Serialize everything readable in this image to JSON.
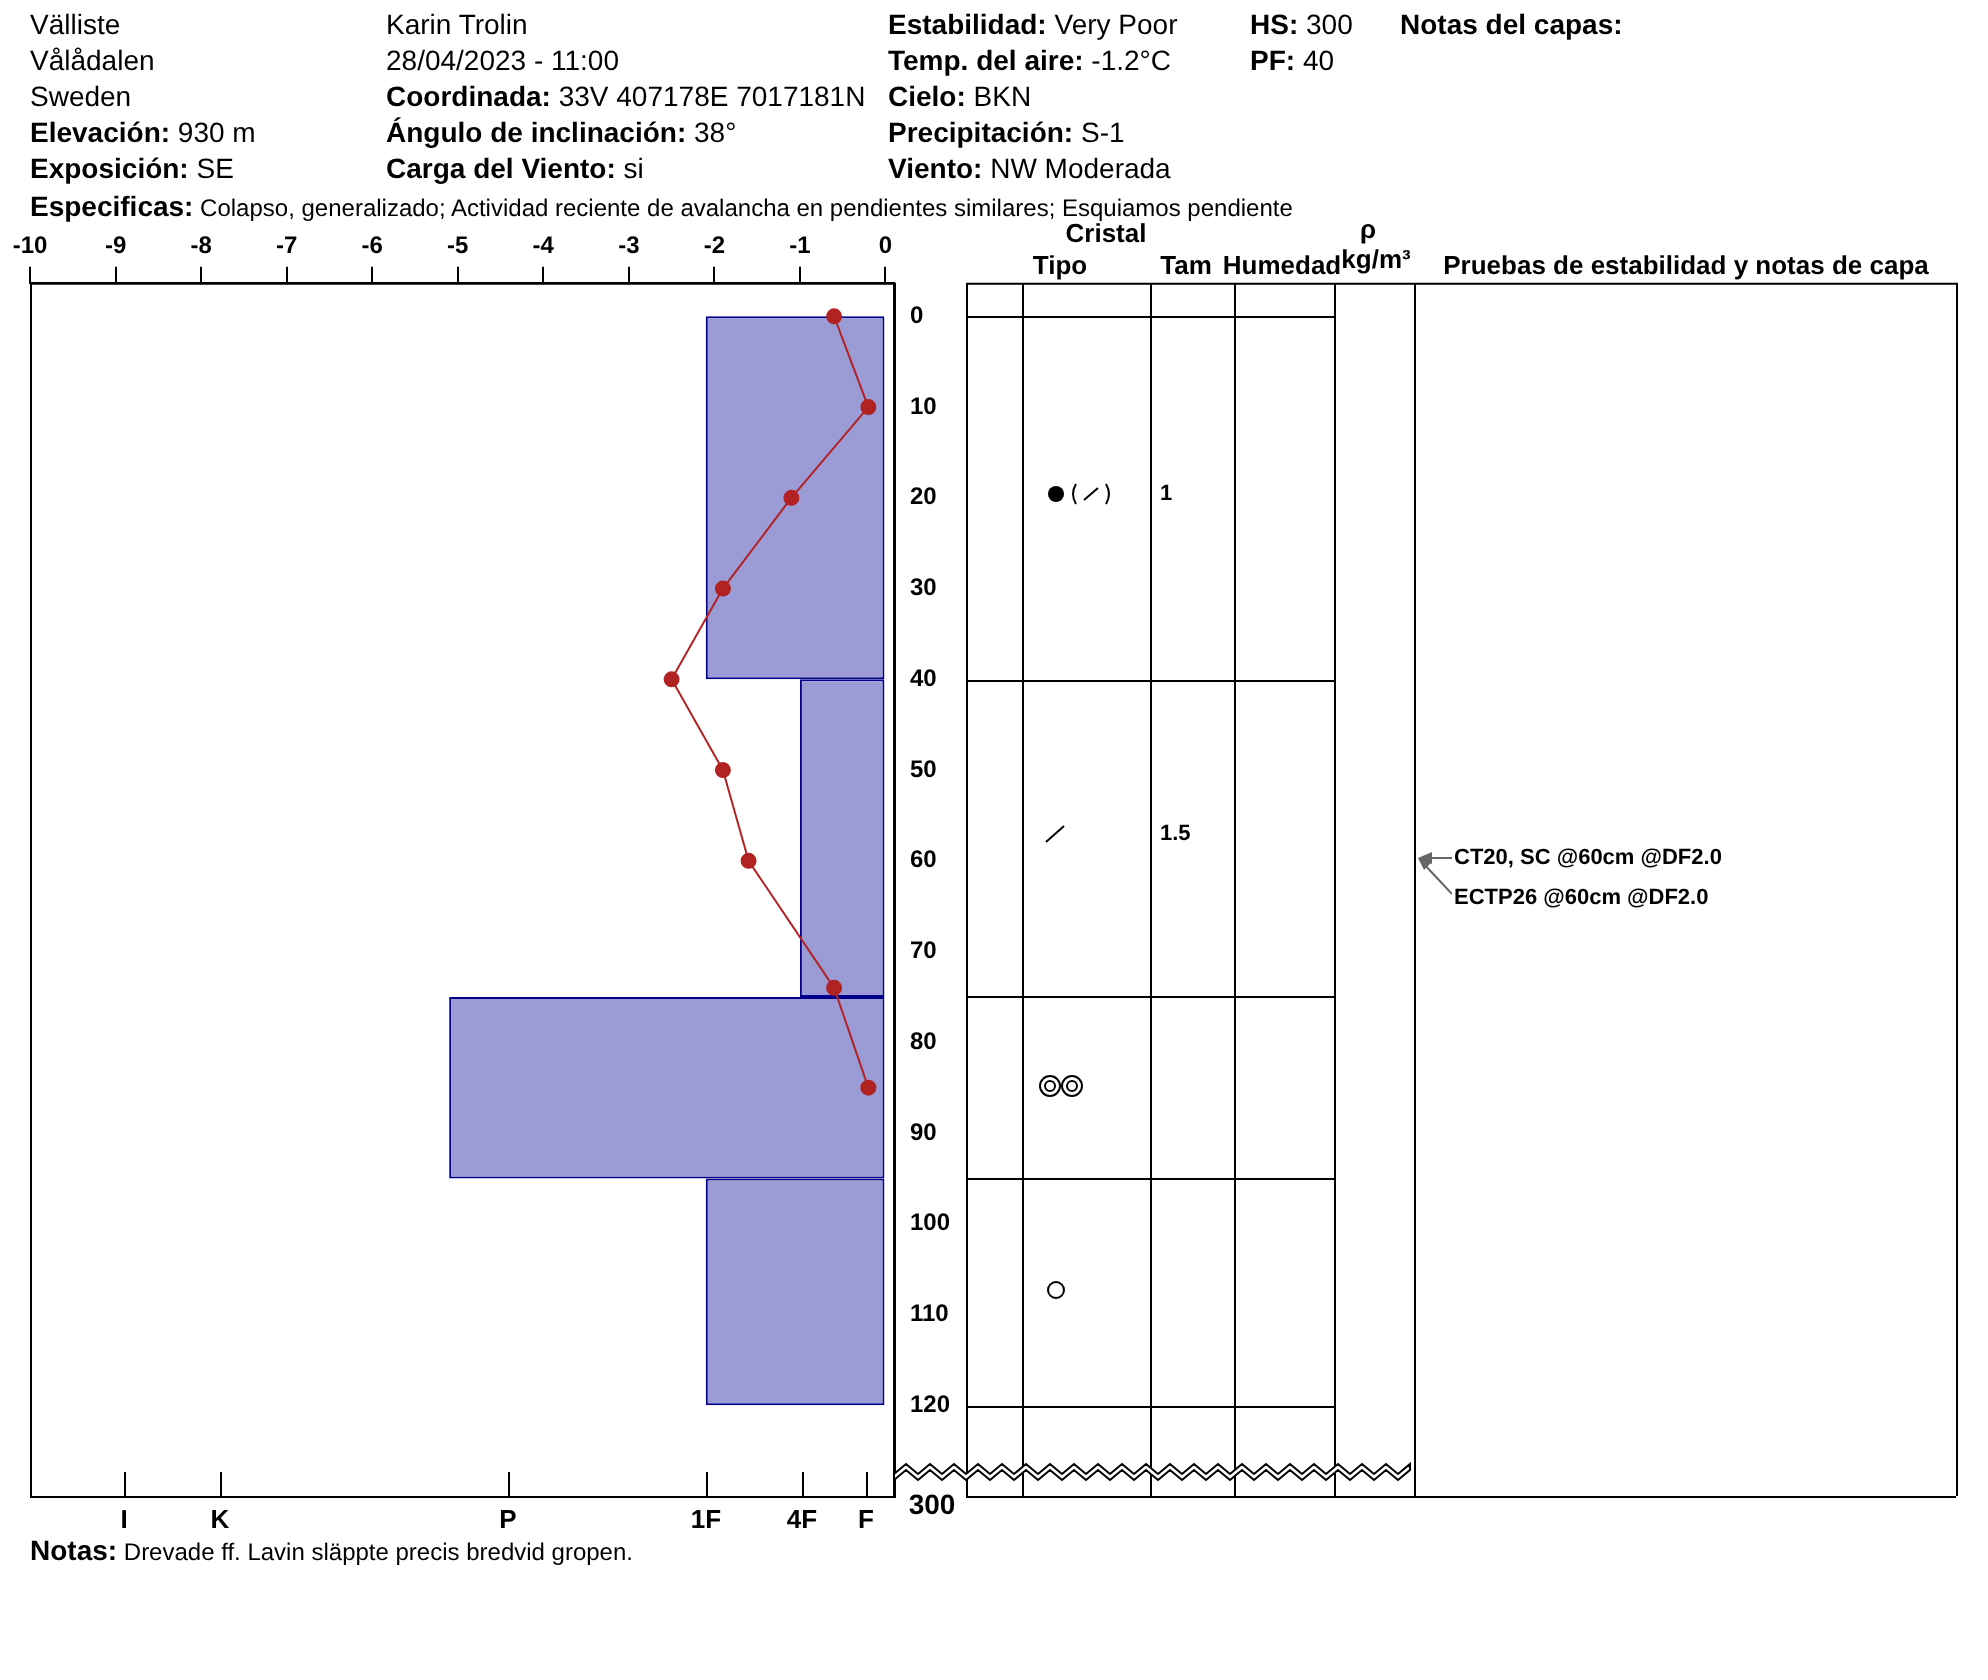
{
  "chart_data": {
    "type": "histogram",
    "orientation": "horizontal",
    "series": [
      {
        "type": "histogram",
        "bins": [
          0,
          40,
          75,
          95,
          120
        ],
        "values": [
          -2.1,
          -1.0,
          -5.1,
          -2.1
        ],
        "color": "#9b9bd6"
      },
      {
        "type": "line",
        "x": [
          0,
          10,
          20,
          30,
          40,
          50,
          60,
          74,
          85
        ],
        "values": [
          -0.6,
          -0.2,
          -1.1,
          -1.9,
          -2.5,
          -1.9,
          -1.6,
          -0.6,
          -0.2
        ],
        "color": "#b22222"
      }
    ],
    "marker": "circle",
    "grid": false,
    "legend": false,
    "xlim": [
      -10,
      0.1
    ],
    "xticks": [
      -10,
      -9,
      -8,
      -7,
      -6,
      -5,
      -4,
      -3,
      -2,
      -1,
      0
    ],
    "ylim": [
      130,
      -3.7
    ],
    "yticks": [
      0,
      10,
      20,
      30,
      40,
      50,
      60,
      70,
      80,
      90,
      100,
      110,
      120
    ],
    "annotations": [
      "Välliste",
      "Vålådalen",
      "Sweden",
      "Elevación: 930 m",
      "Exposición: SE",
      "Karin  Trolin",
      "28/04/2023 - 11:00",
      "Coordinada: 33V 407178E 7017181N",
      "Ángulo de inclinación: 38°",
      "Carga del Viento: si",
      "Estabilidad: Very Poor",
      "Temp. del aire: -1.2°C",
      "Cielo: BKN",
      "Precipitación: S-1",
      "Viento:  NW Moderada",
      "HS: 300",
      "PF: 40",
      "Notas del capas:",
      "Especificas: Colapso, generalizado; Actividad reciente de avalancha en pendientes similares; Esquiamos pendiente",
      "Notas: Drevade ff. Lavin släppte precis bredvid gropen.",
      "300",
      "Cristal",
      "Tipo",
      "Tam",
      "Humedad",
      "ρ",
      "kg/m³",
      "Pruebas de estabilidad y notas de capa",
      "1",
      "1.5",
      "CT20, SC @60cm  @DF2.0",
      "ECTP26 @60cm  @DF2.0",
      "I",
      "K",
      "P",
      "1F",
      "4F",
      "F"
    ]
  }
}
